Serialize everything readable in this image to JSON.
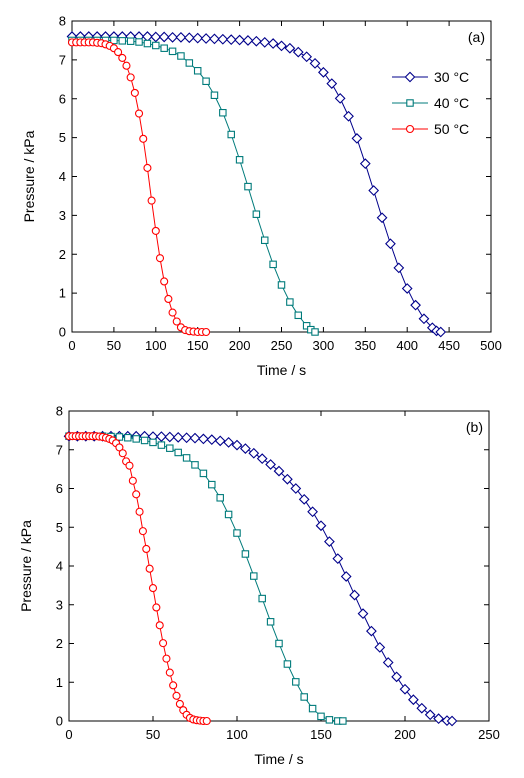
{
  "chart_data": [
    {
      "type": "line",
      "panel_label": "(a)",
      "xlabel": "Time / s",
      "ylabel": "Pressure / kPa",
      "xlim": [
        0,
        500
      ],
      "ylim": [
        0,
        8
      ],
      "xticks": [
        0,
        50,
        100,
        150,
        200,
        250,
        300,
        350,
        400,
        450,
        500
      ],
      "yticks": [
        0,
        1,
        2,
        3,
        4,
        5,
        6,
        7,
        8
      ],
      "grid": false,
      "legend_position": "top-right",
      "series": [
        {
          "name": "30 °C",
          "marker": "diamond",
          "color": "#00008b",
          "x": [
            0,
            10,
            20,
            30,
            40,
            50,
            60,
            70,
            80,
            90,
            100,
            110,
            120,
            130,
            140,
            150,
            160,
            170,
            180,
            190,
            200,
            210,
            220,
            230,
            240,
            250,
            260,
            270,
            280,
            290,
            300,
            310,
            320,
            330,
            340,
            350,
            360,
            370,
            380,
            390,
            400,
            410,
            420,
            430,
            435,
            440
          ],
          "y": [
            7.6,
            7.6,
            7.6,
            7.6,
            7.6,
            7.6,
            7.6,
            7.6,
            7.6,
            7.6,
            7.59,
            7.59,
            7.58,
            7.58,
            7.57,
            7.56,
            7.55,
            7.54,
            7.53,
            7.52,
            7.51,
            7.5,
            7.48,
            7.45,
            7.42,
            7.36,
            7.3,
            7.2,
            7.08,
            6.91,
            6.68,
            6.39,
            6.01,
            5.55,
            4.98,
            4.33,
            3.64,
            2.94,
            2.27,
            1.65,
            1.12,
            0.69,
            0.34,
            0.11,
            0.03,
            0.0
          ]
        },
        {
          "name": "40 °C",
          "marker": "square",
          "color": "#007b7b",
          "x": [
            0,
            10,
            20,
            30,
            40,
            50,
            60,
            70,
            80,
            90,
            100,
            110,
            120,
            130,
            140,
            150,
            160,
            170,
            180,
            190,
            200,
            210,
            220,
            230,
            240,
            250,
            260,
            270,
            280,
            285,
            290
          ],
          "y": [
            7.5,
            7.5,
            7.5,
            7.5,
            7.5,
            7.5,
            7.49,
            7.48,
            7.46,
            7.42,
            7.37,
            7.3,
            7.22,
            7.1,
            6.92,
            6.72,
            6.45,
            6.09,
            5.64,
            5.08,
            4.43,
            3.74,
            3.03,
            2.36,
            1.74,
            1.21,
            0.77,
            0.43,
            0.16,
            0.06,
            0.0
          ]
        },
        {
          "name": "50 °C",
          "marker": "circle",
          "color": "#ff0000",
          "x": [
            0,
            5,
            10,
            15,
            20,
            25,
            30,
            35,
            40,
            45,
            50,
            55,
            60,
            65,
            70,
            75,
            80,
            85,
            90,
            95,
            100,
            105,
            110,
            115,
            120,
            125,
            130,
            135,
            140,
            145,
            150,
            155,
            160
          ],
          "y": [
            7.45,
            7.45,
            7.45,
            7.45,
            7.45,
            7.45,
            7.44,
            7.43,
            7.4,
            7.36,
            7.3,
            7.2,
            7.05,
            6.85,
            6.55,
            6.15,
            5.62,
            4.97,
            4.22,
            3.38,
            2.6,
            1.9,
            1.3,
            0.85,
            0.5,
            0.27,
            0.12,
            0.05,
            0.02,
            0.01,
            0.0,
            0.0,
            0.0
          ]
        }
      ]
    },
    {
      "type": "line",
      "panel_label": "(b)",
      "xlabel": "Time / s",
      "ylabel": "Pressure / kPa",
      "xlim": [
        0,
        250
      ],
      "ylim": [
        0,
        8
      ],
      "xticks": [
        0,
        50,
        100,
        150,
        200,
        250
      ],
      "yticks": [
        0,
        1,
        2,
        3,
        4,
        5,
        6,
        7,
        8
      ],
      "grid": false,
      "series": [
        {
          "name": "30 °C",
          "marker": "diamond",
          "color": "#00008b",
          "x": [
            0,
            5,
            10,
            15,
            20,
            25,
            30,
            35,
            40,
            45,
            50,
            55,
            60,
            65,
            70,
            75,
            80,
            85,
            90,
            95,
            100,
            105,
            110,
            115,
            120,
            125,
            130,
            135,
            140,
            145,
            150,
            155,
            160,
            165,
            170,
            175,
            180,
            185,
            190,
            195,
            200,
            205,
            210,
            215,
            220,
            225,
            228
          ],
          "y": [
            7.35,
            7.35,
            7.35,
            7.35,
            7.35,
            7.35,
            7.35,
            7.35,
            7.35,
            7.35,
            7.34,
            7.34,
            7.33,
            7.32,
            7.31,
            7.3,
            7.28,
            7.26,
            7.23,
            7.19,
            7.12,
            7.03,
            6.91,
            6.77,
            6.62,
            6.45,
            6.24,
            6.0,
            5.72,
            5.4,
            5.04,
            4.63,
            4.19,
            3.73,
            3.25,
            2.77,
            2.32,
            1.9,
            1.51,
            1.14,
            0.82,
            0.55,
            0.33,
            0.16,
            0.06,
            0.01,
            0.0
          ]
        },
        {
          "name": "40 °C",
          "marker": "square",
          "color": "#007b7b",
          "x": [
            0,
            5,
            10,
            15,
            20,
            25,
            30,
            35,
            40,
            45,
            50,
            55,
            60,
            65,
            70,
            75,
            80,
            85,
            90,
            95,
            100,
            105,
            110,
            115,
            120,
            125,
            130,
            135,
            140,
            145,
            150,
            155,
            160,
            163
          ],
          "y": [
            7.35,
            7.35,
            7.35,
            7.35,
            7.35,
            7.34,
            7.33,
            7.31,
            7.28,
            7.24,
            7.19,
            7.12,
            7.04,
            6.93,
            6.79,
            6.61,
            6.39,
            6.1,
            5.76,
            5.33,
            4.85,
            4.31,
            3.74,
            3.16,
            2.56,
            2.0,
            1.47,
            1.01,
            0.62,
            0.32,
            0.12,
            0.03,
            0.0,
            0.0
          ]
        },
        {
          "name": "50 °C",
          "marker": "circle",
          "color": "#ff0000",
          "x": [
            0,
            2,
            4,
            6,
            8,
            10,
            12,
            14,
            16,
            18,
            20,
            22,
            24,
            26,
            28,
            30,
            32,
            34,
            36,
            38,
            40,
            42,
            44,
            46,
            48,
            50,
            52,
            54,
            56,
            58,
            60,
            62,
            64,
            66,
            68,
            70,
            72,
            74,
            76,
            78,
            80,
            82
          ],
          "y": [
            7.35,
            7.35,
            7.35,
            7.35,
            7.35,
            7.35,
            7.35,
            7.35,
            7.35,
            7.34,
            7.33,
            7.31,
            7.28,
            7.24,
            7.17,
            7.06,
            6.91,
            6.7,
            6.59,
            6.2,
            5.85,
            5.4,
            4.9,
            4.44,
            3.93,
            3.43,
            2.93,
            2.47,
            2.01,
            1.61,
            1.25,
            0.92,
            0.65,
            0.44,
            0.28,
            0.16,
            0.08,
            0.04,
            0.02,
            0.01,
            0.0,
            0.0
          ]
        }
      ]
    }
  ]
}
